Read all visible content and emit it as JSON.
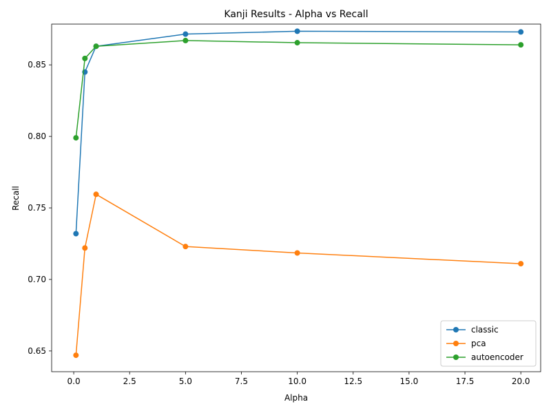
{
  "chart_data": {
    "type": "line",
    "title": "Kanji Results - Alpha vs Recall",
    "xlabel": "Alpha",
    "ylabel": "Recall",
    "xlim": [
      -0.9875,
      20.8875
    ],
    "ylim": [
      0.6355,
      0.8785
    ],
    "xticks": [
      0.0,
      2.5,
      5.0,
      7.5,
      10.0,
      12.5,
      15.0,
      17.5,
      20.0
    ],
    "xtick_labels": [
      "0.0",
      "2.5",
      "5.0",
      "7.5",
      "10.0",
      "12.5",
      "15.0",
      "17.5",
      "20.0"
    ],
    "yticks": [
      0.65,
      0.7,
      0.75,
      0.8,
      0.85
    ],
    "ytick_labels": [
      "0.65",
      "0.70",
      "0.75",
      "0.80",
      "0.85"
    ],
    "x": [
      0.1,
      0.5,
      1,
      5,
      10,
      20
    ],
    "series": [
      {
        "name": "classic",
        "color": "#1f77b4",
        "values": [
          0.732,
          0.845,
          0.863,
          0.8715,
          0.8735,
          0.873
        ]
      },
      {
        "name": "pca",
        "color": "#ff7f0e",
        "values": [
          0.647,
          0.722,
          0.7595,
          0.723,
          0.7185,
          0.711
        ]
      },
      {
        "name": "autoencoder",
        "color": "#2ca02c",
        "values": [
          0.799,
          0.8545,
          0.863,
          0.867,
          0.8655,
          0.864
        ]
      }
    ],
    "legend_position": "lower-right",
    "grid": false,
    "marker": "circle"
  }
}
